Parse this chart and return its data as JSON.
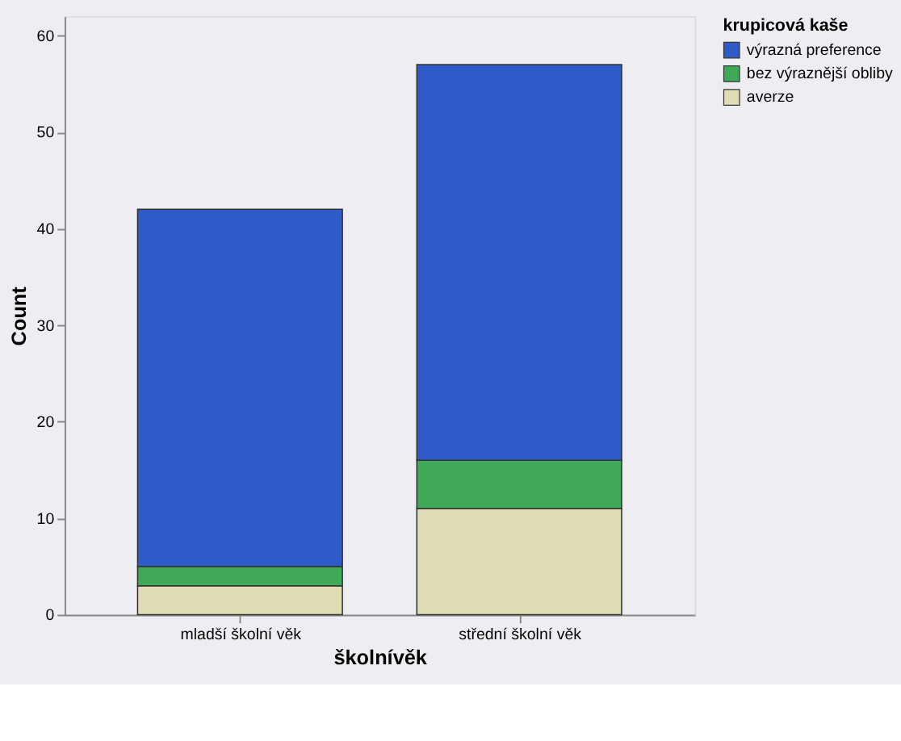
{
  "chart_data": {
    "type": "bar",
    "stacked": true,
    "xlabel": "školnívěk",
    "ylabel": "Count",
    "legend_title": "krupicová kaše",
    "legend": "top right",
    "grid": false,
    "categories": [
      "mladší školní věk",
      "střední školní věk"
    ],
    "series": [
      {
        "name": "averze",
        "color": "#e0dcb4",
        "values": [
          3,
          11
        ]
      },
      {
        "name": "bez výraznější obliby",
        "color": "#3fa958",
        "values": [
          2,
          5
        ]
      },
      {
        "name": "výrazná preference",
        "color": "#2f5bc8",
        "values": [
          37,
          41
        ]
      }
    ],
    "ylim": [
      0,
      62
    ],
    "yticks": [
      0,
      10,
      20,
      30,
      40,
      50,
      60
    ]
  }
}
